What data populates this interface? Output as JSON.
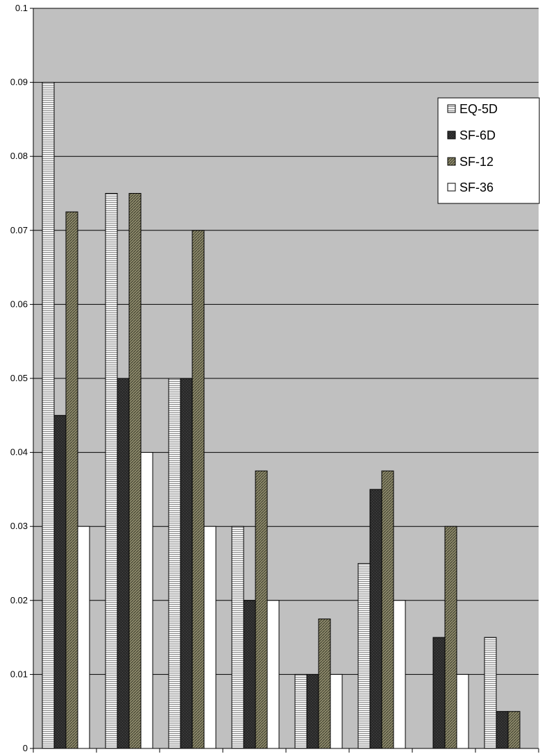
{
  "chart_data": {
    "type": "bar",
    "title": "",
    "xlabel": "",
    "ylabel": "",
    "ylim": [
      0,
      0.1
    ],
    "yticks": [
      "0",
      "0.01",
      "0.02",
      "0.03",
      "0.04",
      "0.05",
      "0.06",
      "0.07",
      "0.08",
      "0.09",
      "0.1"
    ],
    "categories": [
      "",
      "",
      "",
      "",
      "",
      "",
      "",
      ""
    ],
    "grid": true,
    "legend_position": "top-right",
    "plot_background": "#c0c0c0",
    "series": [
      {
        "name": "EQ-5D",
        "pattern": "horizontal-stripes",
        "values": [
          0.09,
          0.075,
          0.05,
          0.03,
          0.01,
          0.025,
          0,
          0.015
        ]
      },
      {
        "name": "SF-6D",
        "pattern": "solid-dark",
        "values": [
          0.045,
          0.05,
          0.05,
          0.02,
          0.01,
          0.035,
          0.015,
          0.005
        ]
      },
      {
        "name": "SF-12",
        "pattern": "hatched-olive",
        "values": [
          0.0725,
          0.075,
          0.07,
          0.0375,
          0.0175,
          0.0375,
          0.03,
          0.005
        ]
      },
      {
        "name": "SF-36",
        "pattern": "solid-white",
        "values": [
          0.03,
          0.04,
          0.03,
          0.02,
          0.01,
          0.02,
          0.01,
          0
        ]
      }
    ]
  }
}
